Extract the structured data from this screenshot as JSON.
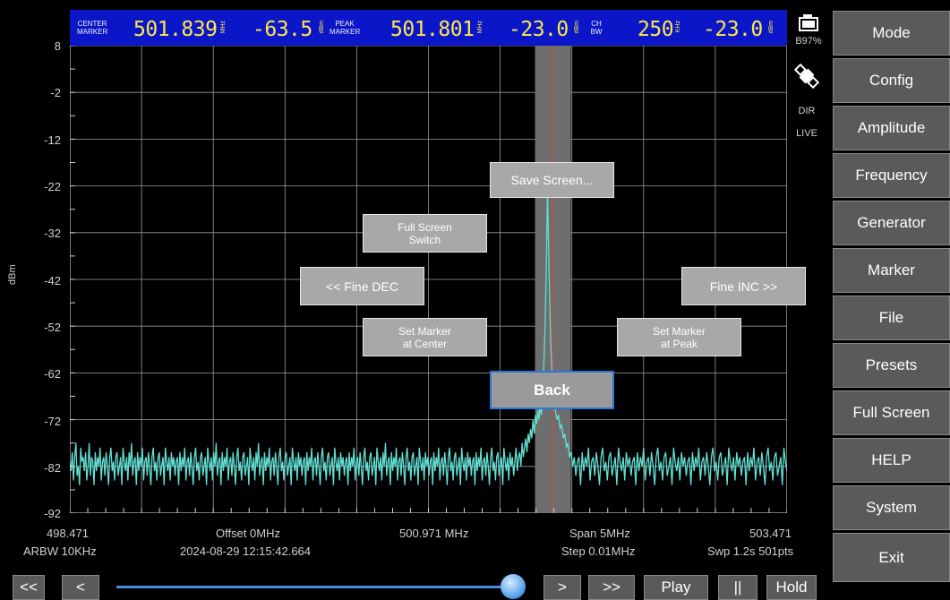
{
  "colors": {
    "trace": "#62e0d4",
    "topbar": "#0b16c8",
    "readout": "#ffe84a",
    "marker_line": "#e04040",
    "marker_band": "#707070",
    "grid": "#ffffff",
    "button_bg": "#5a5a5a"
  },
  "topbar": {
    "center_marker_label": [
      "CENTER",
      "MARKER"
    ],
    "center_freq": "501.839",
    "center_freq_unit": "MHz",
    "center_level": "-63.5",
    "center_level_unit": "dBm",
    "peak_marker_label": [
      "PEAK",
      "MARKER"
    ],
    "peak_freq": "501.801",
    "peak_freq_unit": "MHz",
    "peak_level": "-23.0",
    "peak_level_unit": "dBm",
    "ch_bw_label": [
      "CH",
      "BW"
    ],
    "ch_bw": "250",
    "ch_bw_unit": "KHz",
    "ch_level": "-23.0",
    "ch_level_unit": "dBm"
  },
  "status": {
    "battery": "B97%",
    "battery_icon": "battery-icon",
    "satellite_icon": "satellite-icon",
    "mode": "DIR",
    "live": "LIVE"
  },
  "yaxis": {
    "unit": "dBm",
    "ticks": [
      "8",
      "-2",
      "-12",
      "-22",
      "-32",
      "-42",
      "-52",
      "-62",
      "-72",
      "-82",
      "-92"
    ]
  },
  "xaxis": {
    "start": "498.471",
    "center": "500.971 MHz",
    "end": "503.471",
    "offset": "Offset 0MHz",
    "span": "Span 5MHz",
    "rbw": "ARBW 10KHz",
    "timestamp": "2024-08-29 12:15:42.664",
    "step": "Step 0.01MHz",
    "sweep": "Swp 1.2s  501pts"
  },
  "overlay": {
    "save_screen": "Save Screen...",
    "full_screen_switch": [
      "Full Screen",
      "Switch"
    ],
    "fine_dec": "<< Fine DEC",
    "fine_inc": "Fine INC >>",
    "set_marker_center": [
      "Set Marker",
      "at Center"
    ],
    "set_marker_peak": [
      "Set Marker",
      "at Peak"
    ],
    "back": "Back"
  },
  "menu": [
    "Mode",
    "Config",
    "Amplitude",
    "Frequency",
    "Generator",
    "Marker",
    "File",
    "Presets",
    "Full Screen",
    "HELP",
    "System",
    "Exit"
  ],
  "transport": {
    "fast_back": "<<",
    "back": "<",
    "forward": ">",
    "fast_forward": ">>",
    "play": "Play",
    "pause": "||",
    "hold": "Hold",
    "slider_position": 0.98
  },
  "chart_data": {
    "type": "line",
    "x_range": [
      498.471,
      503.471
    ],
    "ylim": [
      -92,
      8
    ],
    "ylabel": "dBm",
    "grid": true,
    "peak": {
      "x": 501.801,
      "y": -23.0
    },
    "center_marker": {
      "x": 501.839,
      "y": -63.5
    },
    "noise_floor": -82,
    "series": [
      {
        "values": [
          -81,
          -83,
          -79,
          -85,
          -80,
          -77,
          -84,
          -82,
          -86,
          -78,
          -81,
          -80,
          -83,
          -79,
          -85,
          -82,
          -77,
          -84,
          -80,
          -81,
          -86,
          -79,
          -83,
          -80,
          -82,
          -78,
          -85,
          -81,
          -80,
          -84,
          -79,
          -82,
          -86,
          -80,
          -78,
          -83,
          -81,
          -85,
          -80,
          -79,
          -84,
          -82,
          -80,
          -86,
          -78,
          -81,
          -83,
          -80,
          -85,
          -79,
          -82,
          -77,
          -84,
          -81,
          -80,
          -86,
          -79,
          -83,
          -80,
          -82,
          -78,
          -85,
          -81,
          -80,
          -84,
          -79,
          -82,
          -86,
          -80,
          -78,
          -83,
          -81,
          -85,
          -80,
          -79,
          -84,
          -82,
          -80,
          -86,
          -78,
          -81,
          -83,
          -80,
          -85,
          -79,
          -82,
          -80,
          -84,
          -81,
          -80,
          -86,
          -79,
          -83,
          -80,
          -82,
          -78,
          -85,
          -81,
          -80,
          -84,
          -79,
          -82,
          -86,
          -80,
          -78,
          -83,
          -81,
          -85,
          -80,
          -79,
          -84,
          -82,
          -80,
          -86,
          -78,
          -81,
          -83,
          -80,
          -85,
          -79,
          -82,
          -77,
          -84,
          -81,
          -80,
          -86,
          -79,
          -83,
          -80,
          -82,
          -78,
          -85,
          -81,
          -80,
          -84,
          -79,
          -82,
          -86,
          -80,
          -78,
          -83,
          -81,
          -85,
          -80,
          -79,
          -84,
          -82,
          -80,
          -86,
          -78,
          -81,
          -83,
          -80,
          -85,
          -79,
          -82,
          -77,
          -84,
          -81,
          -80,
          -86,
          -79,
          -83,
          -80,
          -82,
          -78,
          -85,
          -81,
          -80,
          -84,
          -79,
          -82,
          -86,
          -80,
          -78,
          -83,
          -81,
          -85,
          -80,
          -79,
          -84,
          -82,
          -80,
          -86,
          -78,
          -81,
          -83,
          -80,
          -85,
          -79,
          -82,
          -80,
          -84,
          -81,
          -80,
          -86,
          -79,
          -83,
          -80,
          -82,
          -78,
          -85,
          -81,
          -80,
          -84,
          -79,
          -82,
          -86,
          -80,
          -78,
          -83,
          -81,
          -85,
          -80,
          -79,
          -84,
          -82,
          -80,
          -86,
          -78,
          -81,
          -83,
          -80,
          -85,
          -79,
          -82,
          -80,
          -84,
          -81,
          -80,
          -86,
          -79,
          -83,
          -80,
          -82,
          -78,
          -85,
          -81,
          -80,
          -84,
          -79,
          -82,
          -86,
          -80,
          -78,
          -83,
          -81,
          -85,
          -80,
          -79,
          -84,
          -82,
          -80,
          -86,
          -78,
          -81,
          -83,
          -80,
          -85,
          -79,
          -82,
          -77,
          -84,
          -81,
          -80,
          -86,
          -79,
          -83,
          -80,
          -82,
          -78,
          -85,
          -81,
          -80,
          -84,
          -79,
          -82,
          -86,
          -80,
          -78,
          -83,
          -81,
          -85,
          -80,
          -79,
          -84,
          -82,
          -80,
          -86,
          -78,
          -81,
          -83,
          -80,
          -85,
          -79,
          -82,
          -80,
          -84,
          -81,
          -80,
          -86,
          -79,
          -83,
          -80,
          -82,
          -78,
          -85,
          -81,
          -80,
          -84,
          -79,
          -82,
          -86,
          -80,
          -78,
          -83,
          -81,
          -85,
          -80,
          -79,
          -84,
          -82,
          -80,
          -86,
          -78,
          -81,
          -83,
          -80,
          -85,
          -79,
          -82,
          -80,
          -84,
          -81,
          -80,
          -86,
          -79,
          -83,
          -80,
          -82,
          -78,
          -85,
          -81,
          -80,
          -84,
          -79,
          -82,
          -86,
          -80,
          -78,
          -83,
          -81,
          -85,
          -80,
          -79,
          -84,
          -82,
          -80,
          -86,
          -78,
          -81,
          -83,
          -80,
          -85,
          -79,
          -82,
          -80,
          -84,
          -81,
          -78,
          -83,
          -80,
          -79,
          -82,
          -77,
          -80,
          -78,
          -76,
          -79,
          -75,
          -77,
          -74,
          -76,
          -72,
          -75,
          -71,
          -73,
          -70,
          -72,
          -69,
          -71,
          -65,
          -60,
          -52,
          -40,
          -23,
          -40,
          -55,
          -63,
          -68,
          -70,
          -72,
          -71,
          -74,
          -73,
          -76,
          -75,
          -78,
          -77,
          -80,
          -79,
          -82,
          -80,
          -84,
          -81,
          -80,
          -86,
          -79,
          -83,
          -80,
          -82,
          -78,
          -85,
          -81,
          -80,
          -84,
          -79,
          -82,
          -86,
          -80,
          -78,
          -83,
          -81,
          -85,
          -80,
          -79,
          -84,
          -82,
          -80,
          -86,
          -78,
          -81,
          -83,
          -80,
          -85,
          -79,
          -82,
          -80,
          -84,
          -81,
          -80,
          -86,
          -79,
          -83,
          -80,
          -82,
          -78,
          -85,
          -81,
          -80,
          -84,
          -79,
          -82,
          -86,
          -80,
          -78,
          -83,
          -81,
          -85,
          -80,
          -79,
          -84,
          -82,
          -80,
          -86,
          -78,
          -81,
          -83,
          -80,
          -85,
          -79,
          -82,
          -80,
          -84,
          -81,
          -80,
          -86,
          -79,
          -83,
          -80,
          -82,
          -78,
          -85,
          -81,
          -80,
          -84,
          -79,
          -82,
          -86,
          -80,
          -78,
          -83,
          -81,
          -85,
          -80,
          -79,
          -84,
          -82,
          -80,
          -86,
          -78,
          -81,
          -83,
          -80,
          -85,
          -79,
          -82,
          -80,
          -84,
          -81,
          -80,
          -86,
          -79,
          -83,
          -80,
          -82,
          -78,
          -85,
          -81,
          -80,
          -84,
          -79,
          -82,
          -86,
          -80,
          -78,
          -83,
          -81,
          -85,
          -80,
          -79,
          -84,
          -82,
          -80,
          -86,
          -78,
          -81,
          -83
        ]
      }
    ]
  }
}
